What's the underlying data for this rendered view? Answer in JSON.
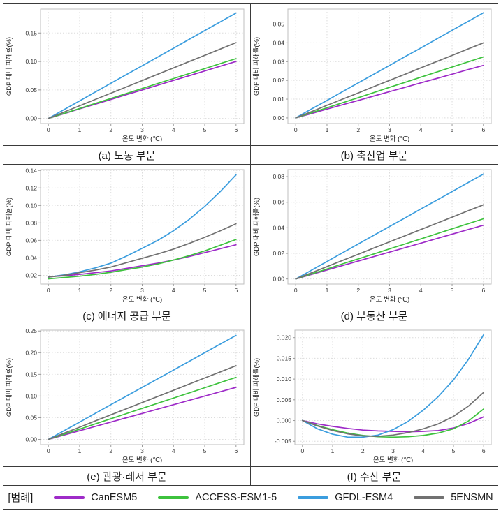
{
  "legend": {
    "prefix_label": "[범례]",
    "items": [
      {
        "label": "CanESM5",
        "color": "#9E2BC8"
      },
      {
        "label": "ACCESS-ESM1-5",
        "color": "#3DC23D"
      },
      {
        "label": "GFDL-ESM4",
        "color": "#3B9DDE"
      },
      {
        "label": "5ENSMN",
        "color": "#717171"
      }
    ]
  },
  "chart_data": [
    {
      "id": "a",
      "type": "line",
      "title": "(a) 노동 부문",
      "xlabel": "온도 변화 (℃)",
      "ylabel": "GDP 대비 피해율(%)",
      "x": [
        0,
        0.5,
        1,
        1.5,
        2,
        2.5,
        3,
        3.5,
        4,
        4.5,
        5,
        5.5,
        6
      ],
      "xticks": [
        "0",
        "1",
        "2",
        "3",
        "4",
        "5",
        "6"
      ],
      "yticks": [
        "0.00",
        "0.05",
        "0.10",
        "0.15"
      ],
      "xlim": [
        -0.25,
        6.25
      ],
      "ylim": [
        -0.009,
        0.192
      ],
      "grid": true,
      "series": [
        {
          "name": "CanESM5",
          "color": "#9E2BC8",
          "values": [
            0,
            0.0083,
            0.0167,
            0.025,
            0.0333,
            0.0417,
            0.05,
            0.0583,
            0.0667,
            0.075,
            0.0833,
            0.0917,
            0.1
          ]
        },
        {
          "name": "ACCESS-ESM1-5",
          "color": "#3DC23D",
          "values": [
            0,
            0.0088,
            0.0175,
            0.0263,
            0.035,
            0.0438,
            0.0525,
            0.0613,
            0.07,
            0.0788,
            0.0875,
            0.0963,
            0.105
          ]
        },
        {
          "name": "GFDL-ESM4",
          "color": "#3B9DDE",
          "values": [
            0,
            0.0154,
            0.0308,
            0.0463,
            0.0617,
            0.0771,
            0.0925,
            0.1079,
            0.1233,
            0.1388,
            0.1542,
            0.1696,
            0.185
          ]
        },
        {
          "name": "5ENSMN",
          "color": "#717171",
          "values": [
            0,
            0.0111,
            0.0222,
            0.0333,
            0.0443,
            0.0554,
            0.0665,
            0.0776,
            0.0887,
            0.0998,
            0.1108,
            0.1219,
            0.133
          ]
        }
      ]
    },
    {
      "id": "b",
      "type": "line",
      "title": "(b) 축산업 부문",
      "xlabel": "온도 변화 (℃)",
      "ylabel": "GDP 대비 피해율(%)",
      "x": [
        0,
        0.5,
        1,
        1.5,
        2,
        2.5,
        3,
        3.5,
        4,
        4.5,
        5,
        5.5,
        6
      ],
      "xticks": [
        "0",
        "1",
        "2",
        "3",
        "4",
        "5",
        "6"
      ],
      "yticks": [
        "0.00",
        "0.01",
        "0.02",
        "0.03",
        "0.04",
        "0.05"
      ],
      "xlim": [
        -0.25,
        6.25
      ],
      "ylim": [
        -0.003,
        0.058
      ],
      "grid": true,
      "series": [
        {
          "name": "CanESM5",
          "color": "#9E2BC8",
          "values": [
            0,
            0.0023,
            0.0047,
            0.007,
            0.0093,
            0.0117,
            0.014,
            0.0163,
            0.0187,
            0.021,
            0.0233,
            0.0257,
            0.028
          ]
        },
        {
          "name": "ACCESS-ESM1-5",
          "color": "#3DC23D",
          "values": [
            0,
            0.0027,
            0.0054,
            0.0081,
            0.0108,
            0.0135,
            0.0163,
            0.019,
            0.0217,
            0.0244,
            0.0271,
            0.0298,
            0.0325
          ]
        },
        {
          "name": "GFDL-ESM4",
          "color": "#3B9DDE",
          "values": [
            0,
            0.0047,
            0.0093,
            0.014,
            0.0187,
            0.0233,
            0.028,
            0.0327,
            0.0373,
            0.042,
            0.0467,
            0.0513,
            0.056
          ]
        },
        {
          "name": "5ENSMN",
          "color": "#717171",
          "values": [
            0,
            0.0033,
            0.0067,
            0.01,
            0.0133,
            0.0167,
            0.02,
            0.0233,
            0.0267,
            0.03,
            0.0333,
            0.0367,
            0.04
          ]
        }
      ]
    },
    {
      "id": "c",
      "type": "line",
      "title": "(c) 에너지 공급 부문",
      "xlabel": "온도 변화 (℃)",
      "ylabel": "GDP 대비 피해율(%)",
      "x": [
        0,
        0.5,
        1,
        1.5,
        2,
        2.5,
        3,
        3.5,
        4,
        4.5,
        5,
        5.5,
        6
      ],
      "xticks": [
        "0",
        "1",
        "2",
        "3",
        "4",
        "5",
        "6"
      ],
      "yticks": [
        "0.02",
        "0.04",
        "0.06",
        "0.08",
        "0.10",
        "0.12",
        "0.14"
      ],
      "xlim": [
        -0.25,
        6.25
      ],
      "ylim": [
        0.01,
        0.141
      ],
      "grid": true,
      "series": [
        {
          "name": "CanESM5",
          "color": "#9E2BC8",
          "values": [
            0.0185,
            0.0195,
            0.021,
            0.023,
            0.025,
            0.028,
            0.031,
            0.034,
            0.0375,
            0.0415,
            0.046,
            0.0505,
            0.055
          ]
        },
        {
          "name": "ACCESS-ESM1-5",
          "color": "#3DC23D",
          "values": [
            0.016,
            0.0175,
            0.019,
            0.021,
            0.0235,
            0.0265,
            0.0295,
            0.033,
            0.0375,
            0.0425,
            0.048,
            0.0545,
            0.061
          ]
        },
        {
          "name": "GFDL-ESM4",
          "color": "#3B9DDE",
          "values": [
            0.018,
            0.0205,
            0.024,
            0.0285,
            0.034,
            0.042,
            0.051,
            0.06,
            0.071,
            0.084,
            0.099,
            0.116,
            0.135
          ]
        },
        {
          "name": "5ENSMN",
          "color": "#717171",
          "values": [
            0.018,
            0.02,
            0.023,
            0.026,
            0.0295,
            0.0345,
            0.0395,
            0.0445,
            0.05,
            0.0565,
            0.0635,
            0.071,
            0.079
          ]
        }
      ]
    },
    {
      "id": "d",
      "type": "line",
      "title": "(d) 부동산 부문",
      "xlabel": "온도 변화 (℃)",
      "ylabel": "GDP 대비 피해율(%)",
      "x": [
        0,
        0.5,
        1,
        1.5,
        2,
        2.5,
        3,
        3.5,
        4,
        4.5,
        5,
        5.5,
        6
      ],
      "xticks": [
        "0",
        "1",
        "2",
        "3",
        "4",
        "5",
        "6"
      ],
      "yticks": [
        "0.00",
        "0.02",
        "0.04",
        "0.06",
        "0.08"
      ],
      "xlim": [
        -0.25,
        6.25
      ],
      "ylim": [
        -0.004,
        0.0855
      ],
      "grid": true,
      "series": [
        {
          "name": "CanESM5",
          "color": "#9E2BC8",
          "values": [
            0,
            0.0035,
            0.007,
            0.0105,
            0.014,
            0.0175,
            0.021,
            0.0245,
            0.028,
            0.0315,
            0.035,
            0.0385,
            0.042
          ]
        },
        {
          "name": "ACCESS-ESM1-5",
          "color": "#3DC23D",
          "values": [
            0,
            0.0039,
            0.0078,
            0.0118,
            0.0157,
            0.0196,
            0.0235,
            0.0274,
            0.0313,
            0.0353,
            0.0392,
            0.0431,
            0.047
          ]
        },
        {
          "name": "GFDL-ESM4",
          "color": "#3B9DDE",
          "values": [
            0,
            0.0068,
            0.0137,
            0.0205,
            0.0273,
            0.0342,
            0.041,
            0.0478,
            0.0547,
            0.0615,
            0.0683,
            0.0752,
            0.082
          ]
        },
        {
          "name": "5ENSMN",
          "color": "#717171",
          "values": [
            0,
            0.0048,
            0.0097,
            0.0145,
            0.0193,
            0.0242,
            0.029,
            0.0338,
            0.0387,
            0.0435,
            0.0483,
            0.0532,
            0.058
          ]
        }
      ]
    },
    {
      "id": "e",
      "type": "line",
      "title": "(e) 관광·레저 부문",
      "xlabel": "온도 변화 (℃)",
      "ylabel": "GDP 대비 피해율(%)",
      "x": [
        0,
        0.5,
        1,
        1.5,
        2,
        2.5,
        3,
        3.5,
        4,
        4.5,
        5,
        5.5,
        6
      ],
      "xticks": [
        "0",
        "1",
        "2",
        "3",
        "4",
        "5",
        "6"
      ],
      "yticks": [
        "0.00",
        "0.05",
        "0.10",
        "0.15",
        "0.20",
        "0.25"
      ],
      "xlim": [
        -0.25,
        6.25
      ],
      "ylim": [
        -0.012,
        0.252
      ],
      "grid": true,
      "series": [
        {
          "name": "CanESM5",
          "color": "#9E2BC8",
          "values": [
            0,
            0.01,
            0.02,
            0.03,
            0.04,
            0.05,
            0.06,
            0.07,
            0.08,
            0.09,
            0.1,
            0.11,
            0.12
          ]
        },
        {
          "name": "ACCESS-ESM1-5",
          "color": "#3DC23D",
          "values": [
            0,
            0.0119,
            0.0238,
            0.0358,
            0.0477,
            0.0596,
            0.0715,
            0.0834,
            0.0953,
            0.1073,
            0.1192,
            0.1311,
            0.143
          ]
        },
        {
          "name": "GFDL-ESM4",
          "color": "#3B9DDE",
          "values": [
            0,
            0.02,
            0.04,
            0.06,
            0.08,
            0.1,
            0.12,
            0.14,
            0.16,
            0.18,
            0.2,
            0.22,
            0.24
          ]
        },
        {
          "name": "5ENSMN",
          "color": "#717171",
          "values": [
            0,
            0.0142,
            0.0283,
            0.0425,
            0.0567,
            0.0708,
            0.085,
            0.0992,
            0.1133,
            0.1275,
            0.1417,
            0.1558,
            0.17
          ]
        }
      ]
    },
    {
      "id": "f",
      "type": "line",
      "title": "(f) 수산 부문",
      "xlabel": "온도 변화 (℃)",
      "ylabel": "GDP 대비 피해율(%)",
      "x": [
        0,
        0.5,
        1,
        1.5,
        2,
        2.5,
        3,
        3.5,
        4,
        4.5,
        5,
        5.5,
        6
      ],
      "xticks": [
        "0",
        "1",
        "2",
        "3",
        "4",
        "5",
        "6"
      ],
      "yticks": [
        "-0.005",
        "0.000",
        "0.005",
        "0.010",
        "0.015",
        "0.020"
      ],
      "xlim": [
        -0.25,
        6.25
      ],
      "ylim": [
        -0.0058,
        0.0218
      ],
      "grid": true,
      "series": [
        {
          "name": "CanESM5",
          "color": "#9E2BC8",
          "values": [
            0,
            -0.0008,
            -0.0014,
            -0.0019,
            -0.0023,
            -0.0025,
            -0.0026,
            -0.0027,
            -0.0026,
            -0.0024,
            -0.0018,
            -0.0007,
            0.0009
          ]
        },
        {
          "name": "ACCESS-ESM1-5",
          "color": "#3DC23D",
          "values": [
            0,
            -0.0012,
            -0.0022,
            -0.003,
            -0.0036,
            -0.0039,
            -0.004,
            -0.0039,
            -0.0036,
            -0.003,
            -0.002,
            -0.0001,
            0.0028
          ]
        },
        {
          "name": "GFDL-ESM4",
          "color": "#3B9DDE",
          "values": [
            0,
            -0.002,
            -0.0033,
            -0.004,
            -0.004,
            -0.0035,
            -0.0022,
            -0.0002,
            0.0025,
            0.0058,
            0.0098,
            0.0148,
            0.0207
          ]
        },
        {
          "name": "5ENSMN",
          "color": "#717171",
          "values": [
            0,
            -0.0013,
            -0.0024,
            -0.0032,
            -0.0037,
            -0.0038,
            -0.0035,
            -0.0029,
            -0.002,
            -0.0008,
            0.001,
            0.0035,
            0.0068
          ]
        }
      ]
    }
  ]
}
